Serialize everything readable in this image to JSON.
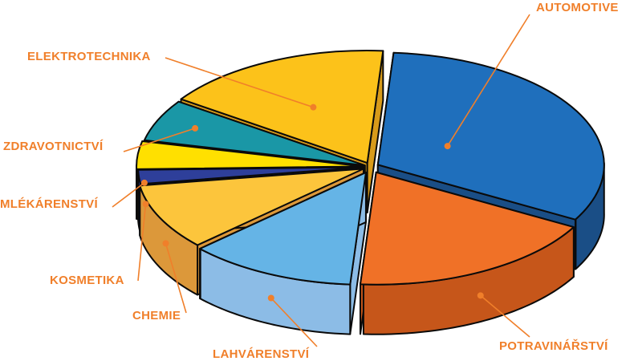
{
  "chart_data": {
    "type": "pie",
    "style": "3d-exploded",
    "title": "",
    "slices": [
      {
        "label": "AUTOMOTIVE",
        "value": 32,
        "color": "#1F6FBC",
        "side": "#1A4E86"
      },
      {
        "label": "POTRAVINÁŘSTVÍ",
        "value": 18,
        "color": "#F07127",
        "side": "#C6561A"
      },
      {
        "label": "LAHVÁRENSTVÍ",
        "value": 12,
        "color": "#65B4E6",
        "side": "#8CBCE6"
      },
      {
        "label": "CHEMIE",
        "value": 9.5,
        "color": "#FCC53C",
        "side": "#DC983A"
      },
      {
        "label": "KOSMETIKA",
        "value": 2,
        "color": "#2E3F9A",
        "side": "#2B3985"
      },
      {
        "label": "MLÉKÁRENSTVÍ",
        "value": 4,
        "color": "#FFE000",
        "side": "#F2CC00"
      },
      {
        "label": "ZDRAVOTNICTVÍ",
        "value": 6,
        "color": "#1A97A6",
        "side": "#137583"
      },
      {
        "label": "ELEKTROTECHNIKA",
        "value": 16.5,
        "color": "#FCC21A",
        "side": "#D89B1A"
      }
    ],
    "legend": "none",
    "labels_position": "outside-with-leaders"
  }
}
